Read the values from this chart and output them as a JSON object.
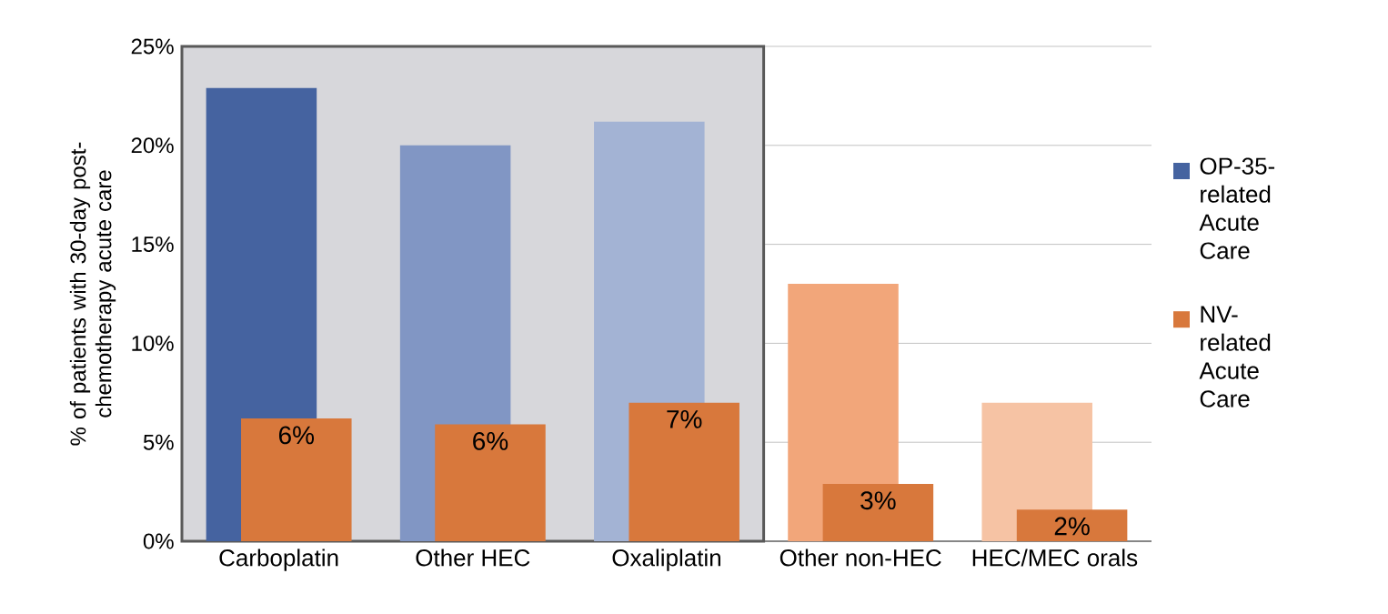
{
  "chart_data": {
    "type": "bar",
    "ylabel": "% of patients with 30-day post-chemotherapy acute care",
    "categories": [
      "Carboplatin",
      "Other HEC",
      "Oxaliplatin",
      "Other non-HEC",
      "HEC/MEC orals"
    ],
    "series": [
      {
        "name": "OP-35-related Acute Care",
        "color": "#4563a0",
        "colors": [
          "#4563a0",
          "#8196c4",
          "#a3b3d4",
          "#f2a67a",
          "#f6c3a4"
        ],
        "values": [
          22.9,
          20.0,
          21.2,
          13.0,
          7.0
        ]
      },
      {
        "name": "NV-related Acute Care",
        "color": "#d8783c",
        "values": [
          6.2,
          5.9,
          7.0,
          2.9,
          1.6
        ],
        "value_labels": [
          "6%",
          "6%",
          "7%",
          "3%",
          "2%"
        ]
      }
    ],
    "ylim": [
      0,
      25
    ],
    "yticks": [
      {
        "value": 0,
        "label": "0%"
      },
      {
        "value": 5,
        "label": "5%"
      },
      {
        "value": 10,
        "label": "10%"
      },
      {
        "value": 15,
        "label": "15%"
      },
      {
        "value": 20,
        "label": "20%"
      },
      {
        "value": 25,
        "label": "25%"
      }
    ],
    "bands": [
      {
        "axis": "x",
        "from": "Carboplatin",
        "to": "Oxaliplatin",
        "color": "#d7d7db"
      }
    ],
    "grid": "y",
    "legend": "right"
  }
}
